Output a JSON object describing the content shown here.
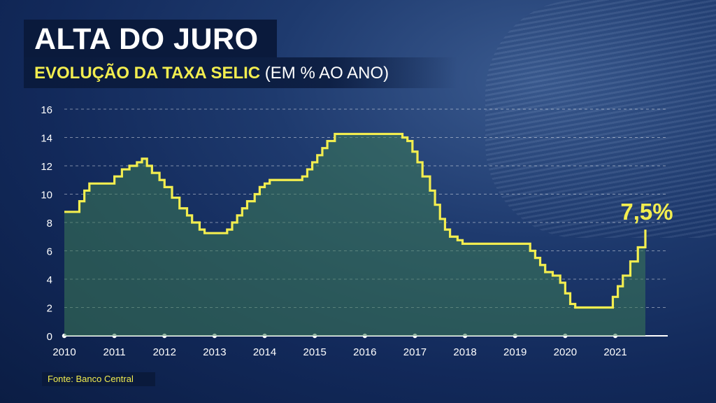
{
  "title": "ALTA DO JURO",
  "subtitle_highlight": "EVOLUÇÃO DA TAXA SELIC",
  "subtitle_rest": " (EM % AO ANO)",
  "source": "Fonte: Banco Central",
  "colors": {
    "line": "#f2ed4f",
    "title_box": "#0a1a3c",
    "area": "#3d7a55"
  },
  "chart_data": {
    "type": "area",
    "step": true,
    "title": "EVOLUÇÃO DA TAXA SELIC (EM % AO ANO)",
    "xlabel": "",
    "ylabel": "",
    "xlim": [
      2010,
      2021.6
    ],
    "ylim": [
      0,
      16
    ],
    "x_ticks": [
      "2010",
      "2011",
      "2012",
      "2013",
      "2014",
      "2015",
      "2016",
      "2017",
      "2018",
      "2019",
      "2020",
      "2021"
    ],
    "y_ticks": [
      "0",
      "2",
      "4",
      "6",
      "8",
      "10",
      "12",
      "14",
      "16"
    ],
    "grid": "horizontal dashed",
    "annotation": {
      "text": "7,5%",
      "x": 2021.6,
      "y": 7.5
    },
    "points": [
      [
        2010.0,
        8.75
      ],
      [
        2010.3,
        9.5
      ],
      [
        2010.4,
        10.25
      ],
      [
        2010.5,
        10.75
      ],
      [
        2011.0,
        11.25
      ],
      [
        2011.15,
        11.75
      ],
      [
        2011.3,
        12.0
      ],
      [
        2011.45,
        12.25
      ],
      [
        2011.55,
        12.5
      ],
      [
        2011.65,
        12.0
      ],
      [
        2011.75,
        11.5
      ],
      [
        2011.9,
        11.0
      ],
      [
        2012.0,
        10.5
      ],
      [
        2012.15,
        9.75
      ],
      [
        2012.3,
        9.0
      ],
      [
        2012.45,
        8.5
      ],
      [
        2012.55,
        8.0
      ],
      [
        2012.7,
        7.5
      ],
      [
        2012.8,
        7.25
      ],
      [
        2013.25,
        7.5
      ],
      [
        2013.35,
        8.0
      ],
      [
        2013.45,
        8.5
      ],
      [
        2013.55,
        9.0
      ],
      [
        2013.65,
        9.5
      ],
      [
        2013.8,
        10.0
      ],
      [
        2013.9,
        10.5
      ],
      [
        2014.0,
        10.75
      ],
      [
        2014.1,
        11.0
      ],
      [
        2014.75,
        11.25
      ],
      [
        2014.85,
        11.75
      ],
      [
        2014.95,
        12.25
      ],
      [
        2015.05,
        12.75
      ],
      [
        2015.15,
        13.25
      ],
      [
        2015.25,
        13.75
      ],
      [
        2015.4,
        14.25
      ],
      [
        2016.75,
        14.0
      ],
      [
        2016.85,
        13.75
      ],
      [
        2016.95,
        13.0
      ],
      [
        2017.05,
        12.25
      ],
      [
        2017.15,
        11.25
      ],
      [
        2017.3,
        10.25
      ],
      [
        2017.4,
        9.25
      ],
      [
        2017.5,
        8.25
      ],
      [
        2017.6,
        7.5
      ],
      [
        2017.7,
        7.0
      ],
      [
        2017.85,
        6.75
      ],
      [
        2017.95,
        6.5
      ],
      [
        2019.3,
        6.0
      ],
      [
        2019.4,
        5.5
      ],
      [
        2019.5,
        5.0
      ],
      [
        2019.6,
        4.5
      ],
      [
        2019.75,
        4.25
      ],
      [
        2019.9,
        3.75
      ],
      [
        2020.0,
        3.0
      ],
      [
        2020.1,
        2.25
      ],
      [
        2020.2,
        2.0
      ],
      [
        2020.95,
        2.75
      ],
      [
        2021.05,
        3.5
      ],
      [
        2021.15,
        4.25
      ],
      [
        2021.3,
        5.25
      ],
      [
        2021.45,
        6.25
      ],
      [
        2021.6,
        7.5
      ]
    ]
  }
}
